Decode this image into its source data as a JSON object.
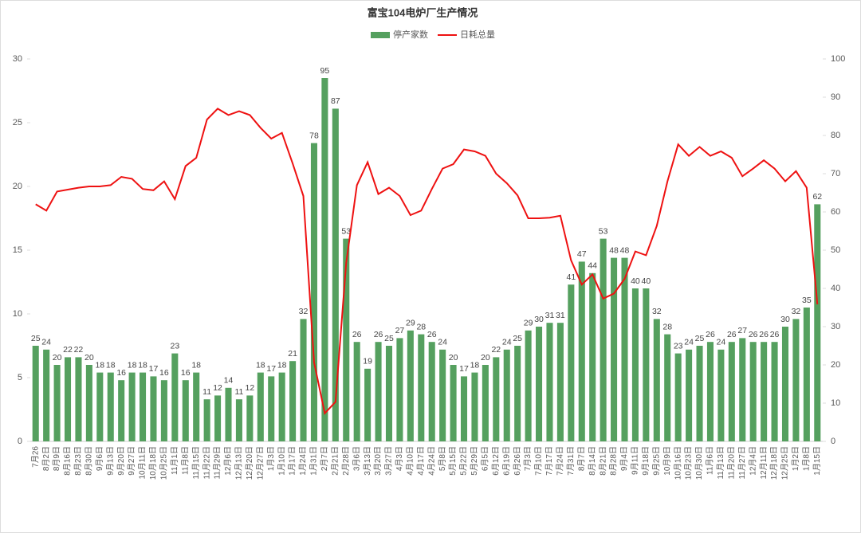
{
  "chart_data": {
    "type": "bar-line",
    "title": "富宝104电炉厂生产情况",
    "categories": [
      "7月26",
      "8月2日",
      "8月9日",
      "8月16日",
      "8月23日",
      "8月30日",
      "9月6日",
      "9月13日",
      "9月20日",
      "9月27日",
      "10月11日",
      "10月18日",
      "10月25日",
      "11月1日",
      "11月8日",
      "11月15日",
      "11月22日",
      "11月29日",
      "12月6日",
      "12月13日",
      "12月20日",
      "12月27日",
      "1月3日",
      "1月10日",
      "1月17日",
      "1月24日",
      "1月31日",
      "2月7日",
      "2月21日",
      "2月28日",
      "3月6日",
      "3月13日",
      "3月20日",
      "3月27日",
      "4月3日",
      "4月10日",
      "4月17日",
      "4月24日",
      "5月8日",
      "5月15日",
      "5月22日",
      "5月29日",
      "6月5日",
      "6月12日",
      "6月19日",
      "6月26日",
      "7月3日",
      "7月10日",
      "7月17日",
      "7月24日",
      "7月31日",
      "8月7日",
      "8月14日",
      "8月21日",
      "8月28日",
      "9月4日",
      "9月11日",
      "9月18日",
      "9月25日",
      "10月9日",
      "10月16日",
      "10月23日",
      "10月30日",
      "11月6日",
      "11月13日",
      "11月20日",
      "11月27日",
      "12月4日",
      "12月11日",
      "12月18日",
      "12月25日",
      "1月2日",
      "1月8日",
      "1月15日"
    ],
    "series": [
      {
        "name": "停产家数",
        "type": "bar",
        "axis": "y2",
        "color": "#55a05f",
        "values": [
          25,
          24,
          20,
          22,
          22,
          20,
          18,
          18,
          16,
          18,
          18,
          17,
          16,
          23,
          16,
          18,
          11,
          12,
          14,
          11,
          12,
          18,
          17,
          18,
          21,
          32,
          78,
          95,
          87,
          53,
          26,
          19,
          26,
          25,
          27,
          29,
          28,
          26,
          24,
          20,
          17,
          18,
          20,
          22,
          24,
          25,
          29,
          30,
          31,
          31,
          41,
          47,
          44,
          53,
          48,
          48,
          40,
          40,
          32,
          28,
          23,
          24,
          25,
          26,
          24,
          26,
          27,
          26,
          26,
          26,
          30,
          32,
          35,
          62
        ]
      },
      {
        "name": "日耗总量",
        "type": "line",
        "color": "#ee1111",
        "values": [
          18.6,
          18.1,
          19.6,
          19.75,
          19.9,
          20.0,
          20.0,
          20.1,
          20.75,
          20.6,
          19.8,
          19.7,
          20.4,
          19.0,
          21.6,
          22.25,
          25.25,
          26.1,
          25.6,
          25.9,
          25.6,
          24.6,
          23.75,
          24.2,
          21.8,
          19.25,
          6.2,
          2.2,
          3.1,
          14.0,
          20.1,
          21.9,
          19.4,
          19.9,
          19.25,
          17.75,
          18.1,
          19.8,
          21.4,
          21.75,
          22.9,
          22.75,
          22.4,
          21.0,
          20.25,
          19.3,
          17.5,
          17.5,
          17.55,
          17.7,
          14.2,
          12.3,
          13.1,
          11.2,
          11.6,
          12.75,
          14.9,
          14.6,
          16.9,
          20.4,
          23.3,
          22.4,
          23.1,
          22.4,
          22.75,
          22.25,
          20.8,
          21.4,
          22.05,
          21.4,
          20.4,
          21.2,
          19.9,
          10.75
        ]
      }
    ],
    "ylim": [
      0,
      30
    ],
    "yticks": [
      0,
      5,
      10,
      15,
      20,
      25,
      30
    ],
    "y2lim": [
      0,
      100
    ],
    "y2ticks": [
      0,
      10,
      20,
      30,
      40,
      50,
      60,
      70,
      80,
      90,
      100
    ],
    "legend": "top"
  }
}
